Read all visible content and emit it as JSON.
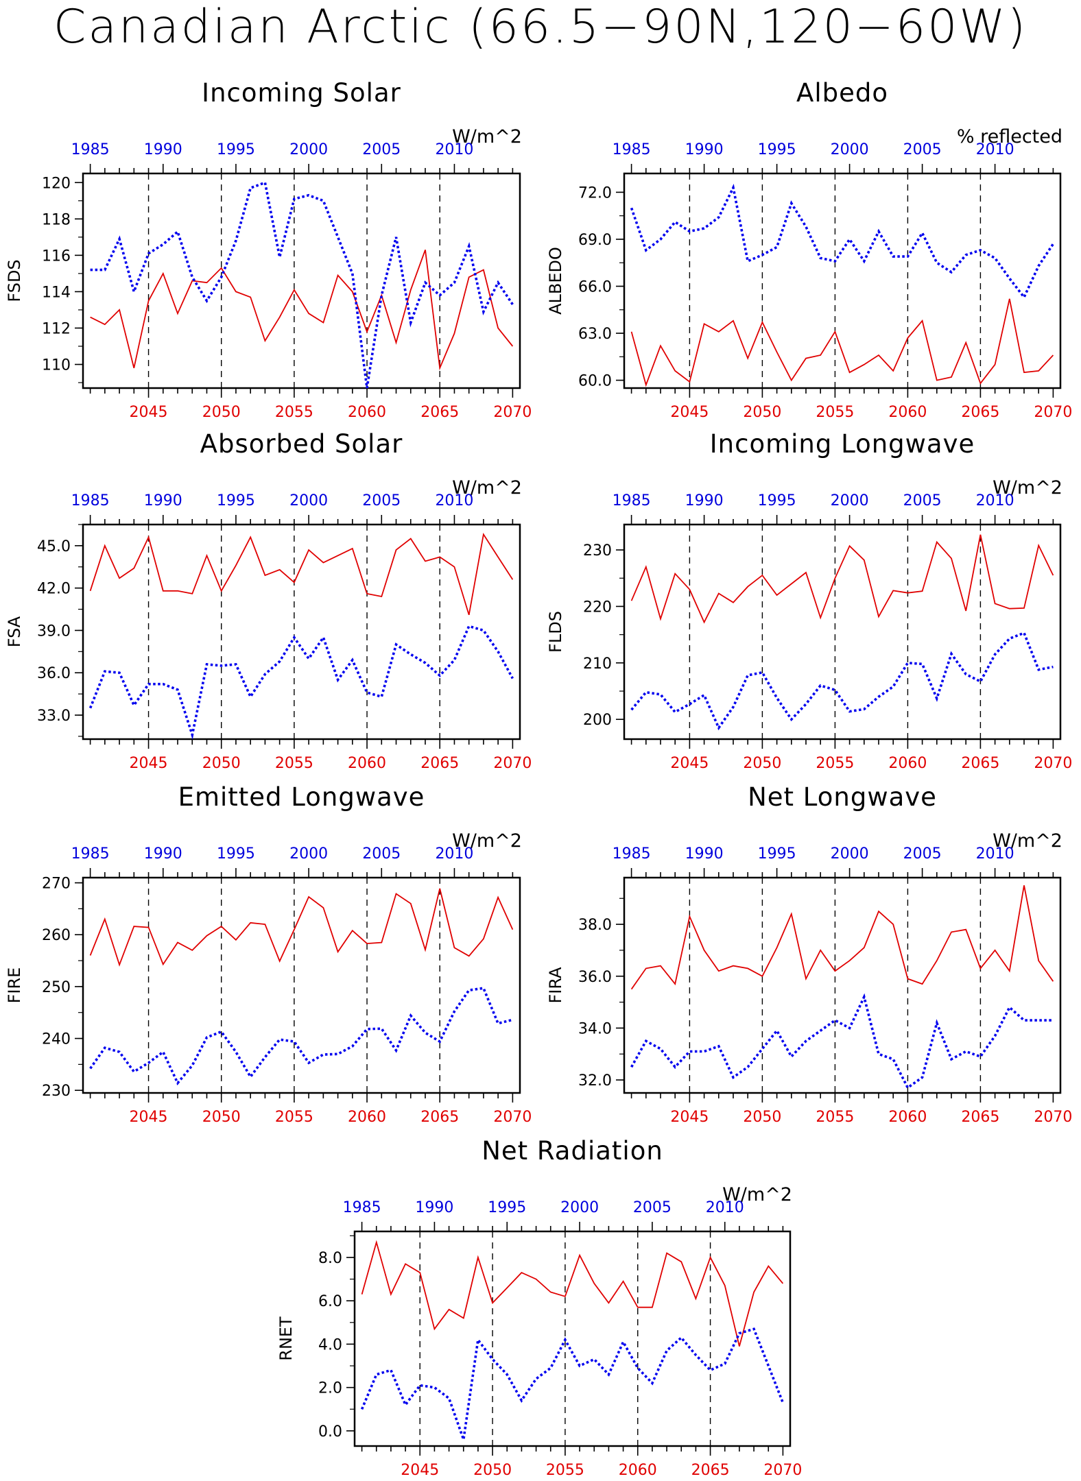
{
  "title": "Canadian Arctic (66.5−90N,120−60W)",
  "colors": {
    "future": "#e00000",
    "past": "#0000ee",
    "frame": "#000000"
  },
  "chart_data": [
    {
      "type": "line",
      "title": "Incoming Solar",
      "unit": "W/m^2",
      "ylabel": "FSDS",
      "ylim": [
        108.7,
        120.5
      ],
      "yticks": [
        110,
        112,
        114,
        116,
        118,
        120
      ],
      "ytick_labels": [
        "110",
        "112",
        "114",
        "116",
        "118",
        "120"
      ],
      "x_bottom_ticks": [
        2045,
        2050,
        2055,
        2060,
        2065,
        2070
      ],
      "x_top_ticks": [
        1985,
        1990,
        1995,
        2000,
        2005,
        2010
      ],
      "series": [
        {
          "x_axis": "bottom",
          "style": "solid",
          "x_start": 2041,
          "values": [
            112.6,
            112.2,
            113.0,
            109.8,
            113.5,
            115.0,
            112.8,
            114.6,
            114.5,
            115.3,
            114.0,
            113.7,
            111.3,
            112.6,
            114.1,
            112.8,
            112.3,
            114.9,
            114.0,
            111.8,
            113.8,
            111.2,
            114.1,
            116.3,
            109.8,
            111.7,
            114.8,
            115.2,
            112.0,
            111.0
          ]
        },
        {
          "x_axis": "top",
          "style": "dotted",
          "x_start": 1985,
          "values": [
            115.2,
            115.2,
            116.9,
            114.0,
            116.1,
            116.6,
            117.3,
            114.8,
            113.5,
            114.8,
            116.8,
            119.7,
            120.0,
            115.9,
            119.1,
            119.3,
            119.0,
            117.0,
            115.0,
            108.7,
            113.8,
            117.0,
            112.3,
            114.5,
            113.8,
            114.5,
            116.5,
            112.9,
            114.5,
            113.3
          ]
        }
      ]
    },
    {
      "type": "line",
      "title": "Albedo",
      "unit": "% reflected",
      "ylabel": "ALBEDO",
      "ylim": [
        59.5,
        73.2
      ],
      "yticks": [
        60,
        63,
        66,
        69,
        72
      ],
      "ytick_labels": [
        "60.0",
        "63.0",
        "66.0",
        "69.0",
        "72.0"
      ],
      "x_bottom_ticks": [
        2045,
        2050,
        2055,
        2060,
        2065,
        2070
      ],
      "x_top_ticks": [
        1985,
        1990,
        1995,
        2000,
        2005,
        2010
      ],
      "series": [
        {
          "x_axis": "bottom",
          "style": "solid",
          "x_start": 2041,
          "values": [
            63.1,
            59.7,
            62.2,
            60.6,
            59.9,
            63.6,
            63.1,
            63.8,
            61.4,
            63.7,
            61.8,
            60.0,
            61.4,
            61.6,
            63.1,
            60.5,
            61.0,
            61.6,
            60.6,
            62.7,
            63.8,
            60.0,
            60.2,
            62.4,
            59.8,
            61.0,
            65.2,
            60.5,
            60.6,
            61.6
          ]
        },
        {
          "x_axis": "top",
          "style": "dotted",
          "x_start": 1985,
          "values": [
            71.0,
            68.3,
            69.0,
            70.1,
            69.5,
            69.7,
            70.4,
            72.3,
            67.6,
            68.0,
            68.5,
            71.3,
            69.8,
            67.8,
            67.6,
            69.0,
            67.6,
            69.5,
            67.9,
            67.9,
            69.4,
            67.5,
            66.9,
            68.0,
            68.3,
            67.8,
            66.5,
            65.3,
            67.3,
            68.7
          ]
        }
      ]
    },
    {
      "type": "line",
      "title": "Absorbed Solar",
      "unit": "W/m^2",
      "ylabel": "FSA",
      "ylim": [
        31.3,
        46.5
      ],
      "yticks": [
        33,
        36,
        39,
        42,
        45
      ],
      "ytick_labels": [
        "33.0",
        "36.0",
        "39.0",
        "42.0",
        "45.0"
      ],
      "x_bottom_ticks": [
        2045,
        2050,
        2055,
        2060,
        2065,
        2070
      ],
      "x_top_ticks": [
        1985,
        1990,
        1995,
        2000,
        2005,
        2010
      ],
      "series": [
        {
          "x_axis": "bottom",
          "style": "solid",
          "x_start": 2041,
          "values": [
            41.8,
            45.0,
            42.7,
            43.4,
            45.6,
            41.8,
            41.8,
            41.6,
            44.3,
            41.8,
            43.6,
            45.6,
            42.9,
            43.3,
            42.4,
            44.7,
            43.8,
            44.3,
            44.8,
            41.6,
            41.4,
            44.7,
            45.5,
            43.9,
            44.2,
            43.5,
            40.1,
            45.8,
            44.2,
            42.6
          ]
        },
        {
          "x_axis": "top",
          "style": "dotted",
          "x_start": 1985,
          "values": [
            33.5,
            36.1,
            36.0,
            33.7,
            35.2,
            35.2,
            34.8,
            31.6,
            36.6,
            36.5,
            36.6,
            34.3,
            35.9,
            36.8,
            38.5,
            37.0,
            38.5,
            35.5,
            36.9,
            34.6,
            34.3,
            38.0,
            37.3,
            36.7,
            35.8,
            36.9,
            39.3,
            39.0,
            37.5,
            35.6
          ]
        }
      ]
    },
    {
      "type": "line",
      "title": "Incoming Longwave",
      "unit": "W/m^2",
      "ylabel": "FLDS",
      "ylim": [
        196.5,
        234.5
      ],
      "yticks": [
        200,
        210,
        220,
        230
      ],
      "ytick_labels": [
        "200",
        "210",
        "220",
        "230"
      ],
      "x_bottom_ticks": [
        2045,
        2050,
        2055,
        2060,
        2065,
        2070
      ],
      "x_top_ticks": [
        1985,
        1990,
        1995,
        2000,
        2005,
        2010
      ],
      "series": [
        {
          "x_axis": "bottom",
          "style": "solid",
          "x_start": 2041,
          "values": [
            221.0,
            227.0,
            217.8,
            225.8,
            223.0,
            217.2,
            222.3,
            220.7,
            223.5,
            225.5,
            222.0,
            224.0,
            226.0,
            218.0,
            225.0,
            230.7,
            228.2,
            218.2,
            222.8,
            222.4,
            222.7,
            231.4,
            228.5,
            219.2,
            232.7,
            220.5,
            219.6,
            219.7,
            230.8,
            225.5
          ]
        },
        {
          "x_axis": "top",
          "style": "dotted",
          "x_start": 1985,
          "values": [
            201.7,
            204.8,
            204.4,
            201.3,
            202.7,
            204.3,
            198.5,
            202.2,
            207.8,
            208.3,
            203.8,
            200.0,
            202.7,
            206.0,
            205.2,
            201.4,
            201.8,
            204.0,
            205.8,
            210.0,
            209.8,
            203.7,
            211.6,
            208.0,
            206.7,
            211.5,
            214.3,
            215.3,
            208.8,
            209.3
          ]
        }
      ]
    },
    {
      "type": "line",
      "title": "Emitted Longwave",
      "unit": "W/m^2",
      "ylabel": "FIRE",
      "ylim": [
        229.5,
        271.0
      ],
      "yticks": [
        230,
        240,
        250,
        260,
        270
      ],
      "ytick_labels": [
        "230",
        "240",
        "250",
        "260",
        "270"
      ],
      "x_bottom_ticks": [
        2045,
        2050,
        2055,
        2060,
        2065,
        2070
      ],
      "x_top_ticks": [
        1985,
        1990,
        1995,
        2000,
        2005,
        2010
      ],
      "series": [
        {
          "x_axis": "bottom",
          "style": "solid",
          "x_start": 2041,
          "values": [
            256.0,
            263.0,
            254.2,
            261.6,
            261.4,
            254.3,
            258.5,
            257.0,
            259.8,
            261.6,
            259.0,
            262.3,
            262.0,
            254.9,
            261.0,
            267.3,
            265.2,
            256.7,
            260.8,
            258.3,
            258.5,
            267.9,
            266.0,
            257.1,
            268.9,
            257.5,
            255.9,
            259.2,
            267.2,
            261.0
          ]
        },
        {
          "x_axis": "top",
          "style": "dotted",
          "x_start": 1985,
          "values": [
            234.2,
            238.2,
            237.4,
            233.6,
            235.3,
            237.4,
            231.4,
            234.8,
            240.2,
            241.3,
            237.4,
            232.6,
            236.4,
            239.8,
            239.4,
            235.3,
            236.9,
            237.0,
            238.5,
            241.8,
            241.9,
            237.7,
            244.4,
            241.1,
            239.4,
            245.2,
            249.3,
            249.7,
            242.9,
            243.6
          ]
        }
      ]
    },
    {
      "type": "line",
      "title": "Net Longwave",
      "unit": "W/m^2",
      "ylabel": "FIRA",
      "ylim": [
        31.5,
        39.8
      ],
      "yticks": [
        32,
        34,
        36,
        38
      ],
      "ytick_labels": [
        "32.0",
        "34.0",
        "36.0",
        "38.0"
      ],
      "x_bottom_ticks": [
        2045,
        2050,
        2055,
        2060,
        2065,
        2070
      ],
      "x_top_ticks": [
        1985,
        1990,
        1995,
        2000,
        2005,
        2010
      ],
      "series": [
        {
          "x_axis": "bottom",
          "style": "solid",
          "x_start": 2041,
          "values": [
            35.5,
            36.3,
            36.4,
            35.7,
            38.3,
            37.0,
            36.2,
            36.4,
            36.3,
            36.0,
            37.1,
            38.4,
            35.9,
            37.0,
            36.2,
            36.6,
            37.1,
            38.5,
            38.0,
            35.9,
            35.7,
            36.6,
            37.7,
            37.8,
            36.3,
            37.0,
            36.2,
            39.5,
            36.6,
            35.8
          ]
        },
        {
          "x_axis": "top",
          "style": "dotted",
          "x_start": 1985,
          "values": [
            32.5,
            33.5,
            33.2,
            32.5,
            33.1,
            33.1,
            33.3,
            32.1,
            32.5,
            33.2,
            33.9,
            32.9,
            33.5,
            33.9,
            34.3,
            34.0,
            35.2,
            33.0,
            32.8,
            31.7,
            32.1,
            34.2,
            32.8,
            33.1,
            32.9,
            33.7,
            34.8,
            34.3,
            34.3,
            34.3
          ]
        }
      ]
    },
    {
      "type": "line",
      "title": "Net Radiation",
      "unit": "W/m^2",
      "ylabel": "RNET",
      "ylim": [
        -0.7,
        9.2
      ],
      "yticks": [
        0,
        2,
        4,
        6,
        8
      ],
      "ytick_labels": [
        "0.0",
        "2.0",
        "4.0",
        "6.0",
        "8.0"
      ],
      "x_bottom_ticks": [
        2045,
        2050,
        2055,
        2060,
        2065,
        2070
      ],
      "x_top_ticks": [
        1985,
        1990,
        1995,
        2000,
        2005,
        2010
      ],
      "series": [
        {
          "x_axis": "bottom",
          "style": "solid",
          "x_start": 2041,
          "values": [
            6.3,
            8.7,
            6.3,
            7.7,
            7.3,
            4.7,
            5.6,
            5.2,
            8.0,
            5.9,
            6.6,
            7.3,
            7.0,
            6.4,
            6.2,
            8.1,
            6.8,
            5.9,
            6.9,
            5.7,
            5.7,
            8.2,
            7.8,
            6.1,
            8.0,
            6.7,
            3.9,
            6.4,
            7.6,
            6.8
          ]
        },
        {
          "x_axis": "top",
          "style": "dotted",
          "x_start": 1985,
          "values": [
            1.0,
            2.6,
            2.8,
            1.2,
            2.1,
            2.0,
            1.5,
            -0.4,
            4.2,
            3.3,
            2.6,
            1.4,
            2.4,
            2.9,
            4.2,
            3.0,
            3.3,
            2.6,
            4.1,
            2.9,
            2.2,
            3.7,
            4.3,
            3.5,
            2.8,
            3.1,
            4.5,
            4.7,
            3.0,
            1.3
          ]
        }
      ]
    }
  ]
}
